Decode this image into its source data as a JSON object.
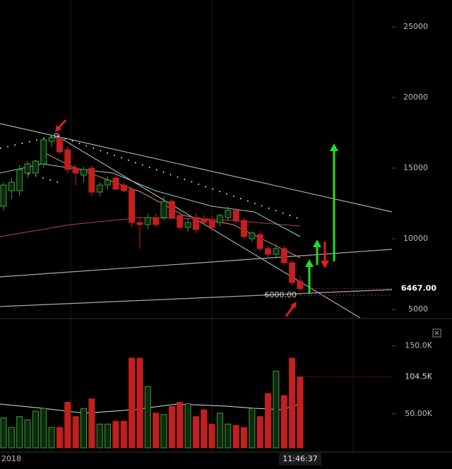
{
  "chart_data": {
    "type": "candlestick",
    "up_color": "#3d9a3d",
    "down_color": "#c41f1f",
    "open": [
      12300,
      13400,
      13400,
      14650,
      14650,
      15300,
      16900,
      17150,
      16300,
      15000,
      14500,
      15000,
      13300,
      13800,
      14300,
      13800,
      13500,
      11150,
      11000,
      11500,
      11500,
      12650,
      11650,
      10800,
      11500,
      11400,
      11300,
      11150,
      11500,
      12000,
      11300,
      10000,
      10300,
      9300,
      8900,
      9300,
      8300,
      7000
    ],
    "high": [
      14000,
      14300,
      15200,
      15500,
      15600,
      17000,
      17300,
      17400,
      16500,
      15300,
      15100,
      15200,
      14000,
      14400,
      14700,
      14000,
      13700,
      11600,
      11800,
      11800,
      13000,
      12800,
      11900,
      11400,
      11800,
      11700,
      11600,
      11800,
      12300,
      12200,
      11500,
      10500,
      10600,
      9500,
      9600,
      9500,
      8500,
      7400
    ],
    "low": [
      12000,
      12800,
      13000,
      14300,
      14400,
      15000,
      16500,
      16000,
      14600,
      13800,
      14000,
      13000,
      13000,
      13500,
      13500,
      13300,
      10800,
      9300,
      10700,
      10800,
      11300,
      11400,
      10600,
      10500,
      10400,
      11000,
      10600,
      10900,
      11300,
      11000,
      10000,
      9800,
      9100,
      8600,
      8600,
      8100,
      6700,
      6000
    ],
    "close": [
      13800,
      14000,
      14900,
      15300,
      15500,
      17000,
      17150,
      16150,
      14900,
      14650,
      14900,
      13300,
      13800,
      14150,
      13500,
      13400,
      11150,
      11000,
      11500,
      11000,
      12650,
      11500,
      10800,
      11150,
      10650,
      11150,
      10800,
      11650,
      12000,
      11300,
      10150,
      10400,
      9300,
      8900,
      9300,
      8300,
      6900,
      6467
    ],
    "volume": [
      44000,
      30000,
      46000,
      41000,
      54000,
      58000,
      30000,
      30000,
      67000,
      46000,
      58000,
      72000,
      35000,
      35000,
      39000,
      39000,
      132000,
      132000,
      90000,
      51000,
      49000,
      61000,
      67000,
      65000,
      46000,
      56000,
      35000,
      51000,
      35000,
      33000,
      30000,
      58000,
      46000,
      80000,
      113000,
      77000,
      132000,
      104500
    ],
    "ylim": [
      4400,
      26900
    ],
    "yticks": [
      5000,
      10000,
      15000,
      20000,
      25000
    ],
    "y2lim": [
      0,
      183000
    ],
    "y2ticks": [
      {
        "value": 50000,
        "label": "50.00K"
      },
      {
        "value": 150000,
        "label": "150.0K"
      }
    ],
    "last_price": {
      "value": 6467,
      "label": "6467.00"
    },
    "last_volume": {
      "value": 104500,
      "label": "104.5K"
    },
    "annotation": {
      "value": 6000,
      "label": "6000.00"
    },
    "x_labels": [
      "2018",
      "11:46:37"
    ]
  }
}
